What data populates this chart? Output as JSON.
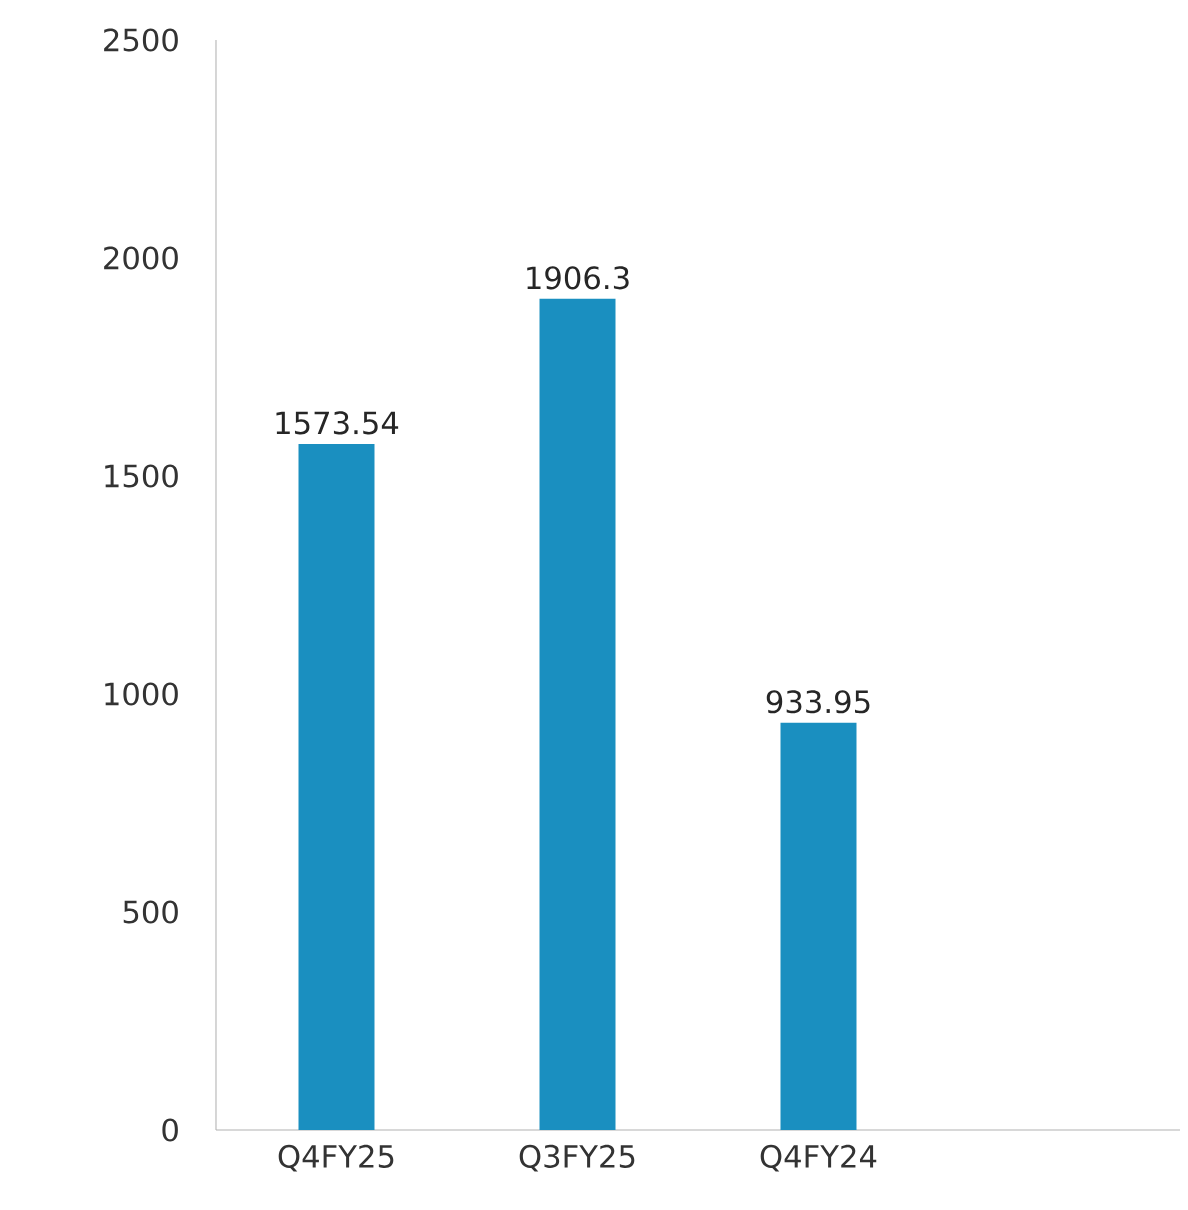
{
  "chart_data": {
    "type": "bar",
    "categories": [
      "Q4FY25",
      "Q3FY25",
      "Q4FY24",
      null
    ],
    "values": [
      1573.54,
      1906.3,
      933.95,
      null
    ],
    "value_labels": [
      "1573.54",
      "1906.3",
      "933.95",
      null
    ],
    "color": "#1a8fc0",
    "ylim": [
      0,
      2500
    ],
    "yticks": [
      0,
      500,
      1000,
      1500,
      2000,
      2500
    ],
    "grid": false
  }
}
